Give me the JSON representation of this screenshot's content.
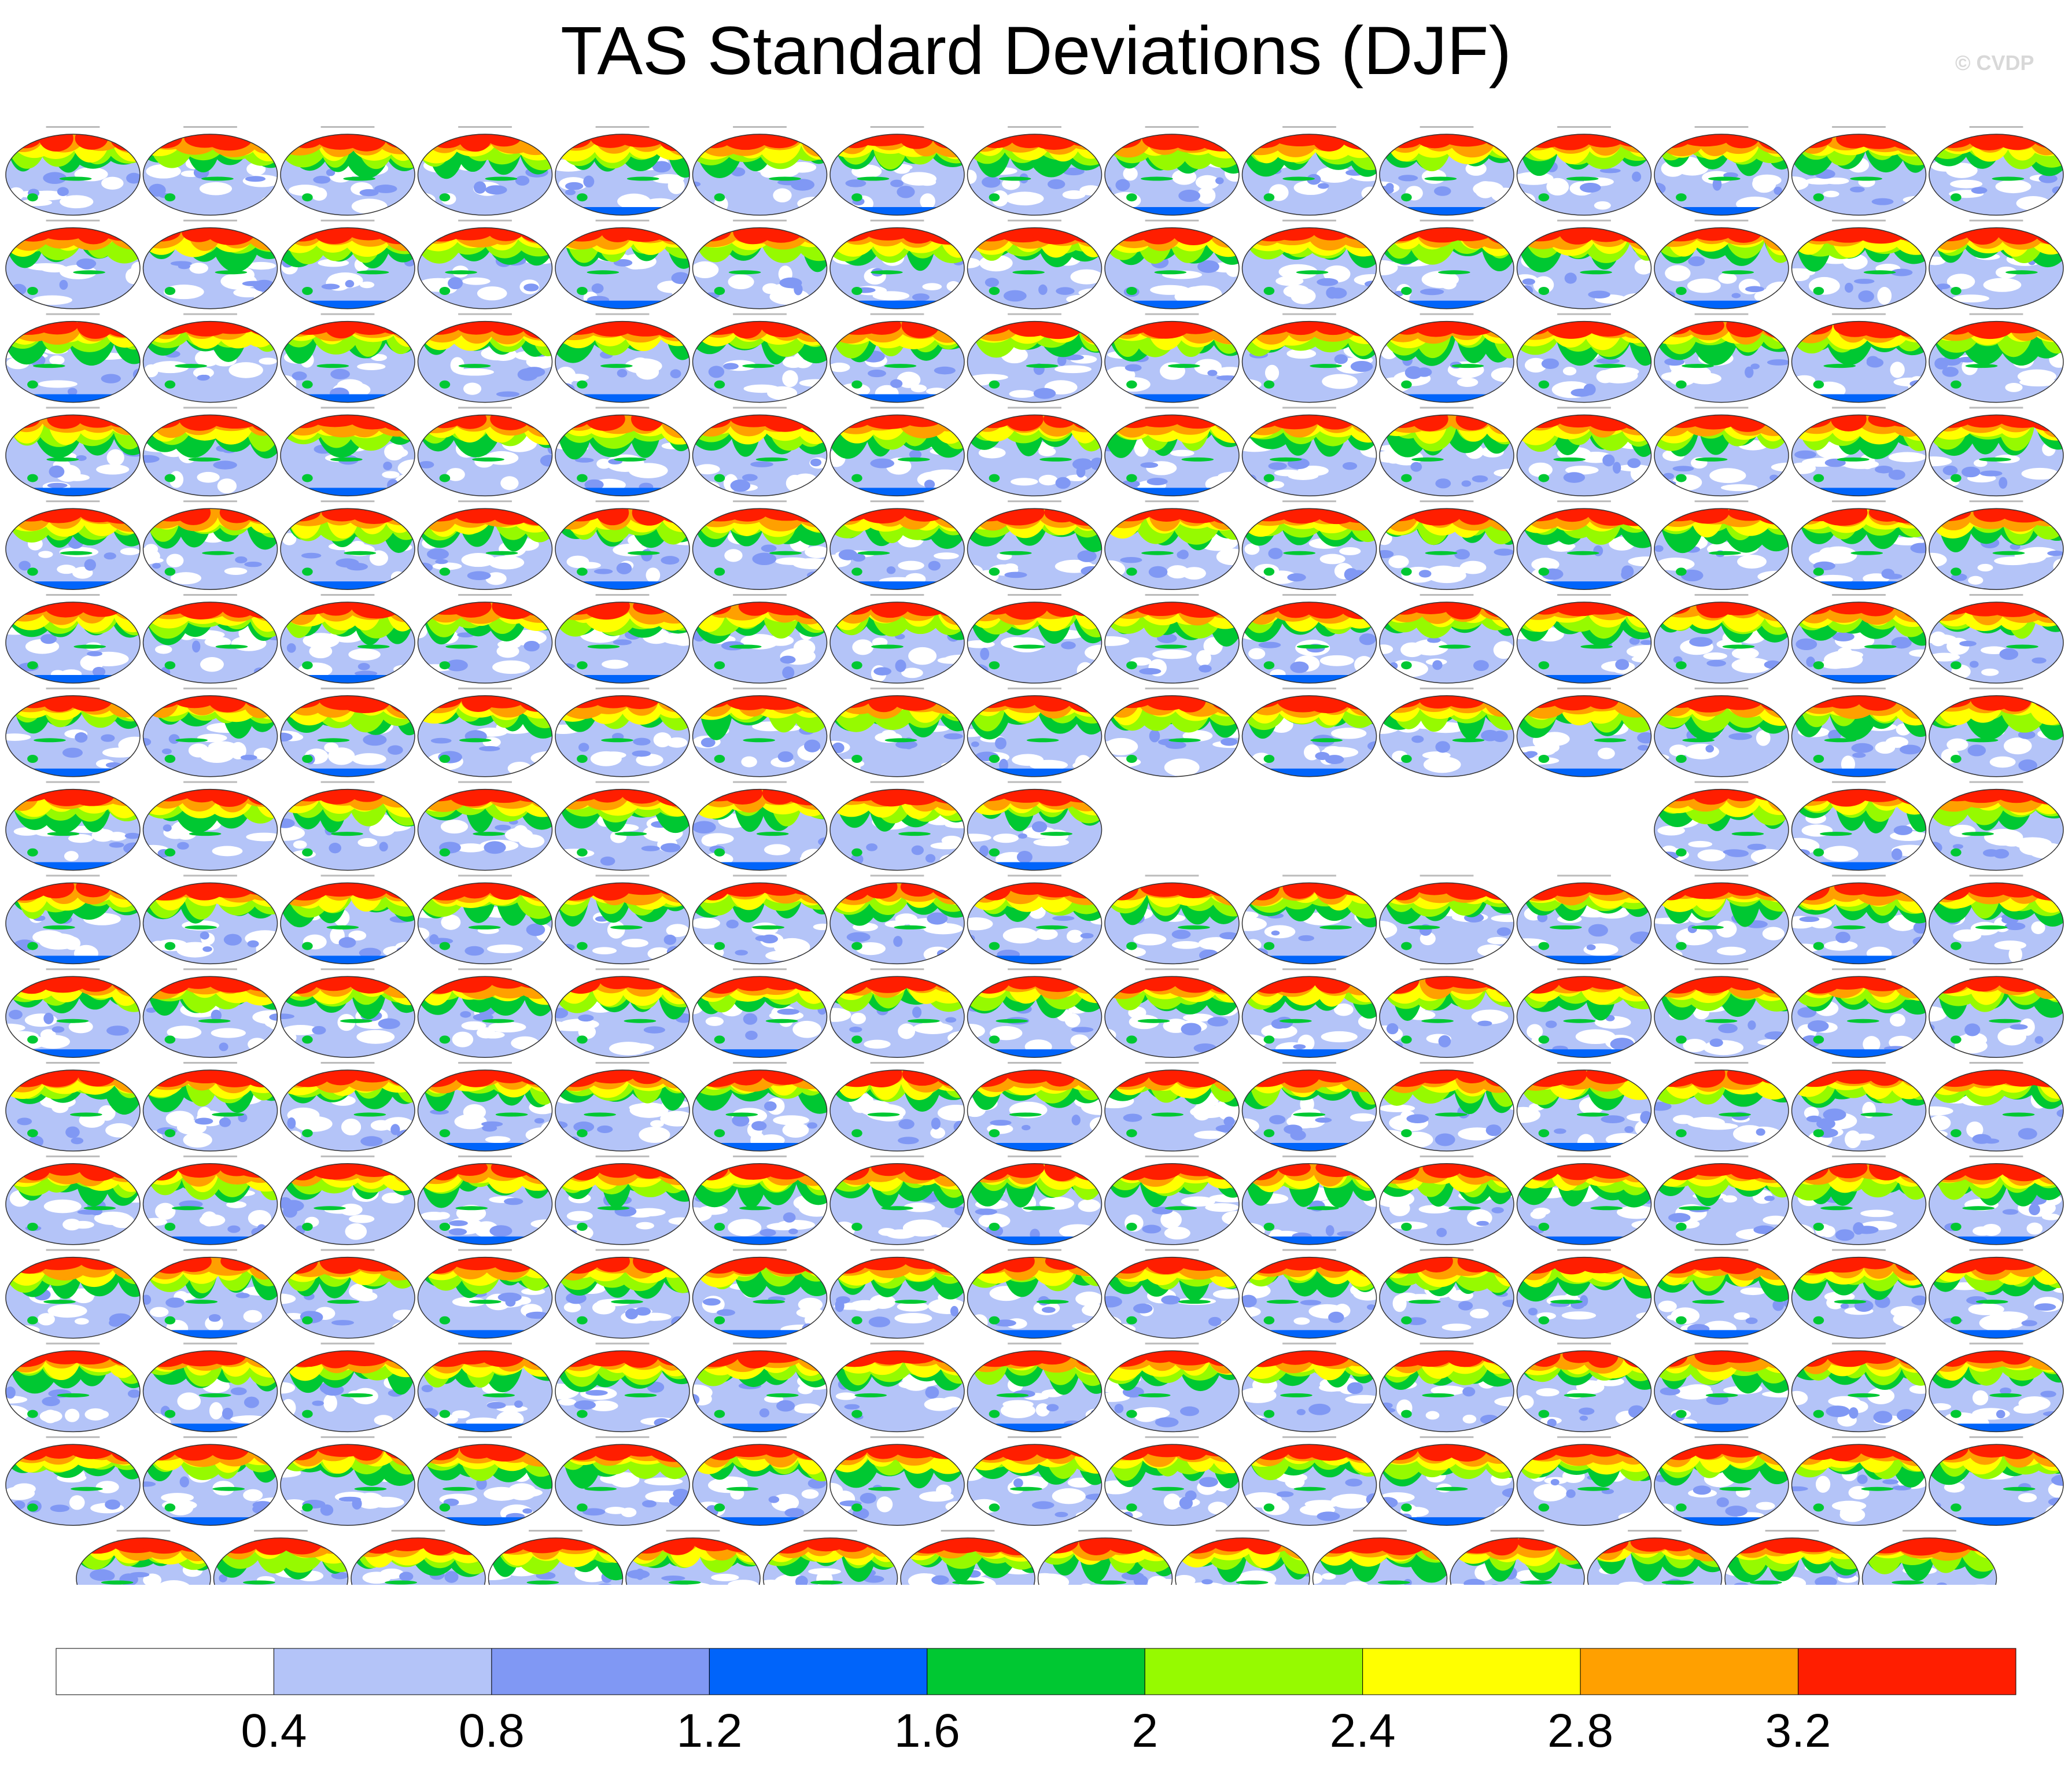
{
  "chart_data": {
    "type": "heatmap",
    "title": "TAS Standard Deviations (DJF)",
    "watermark": "© CVDP",
    "colorbar": {
      "tick_labels": [
        "0.4",
        "0.8",
        "1.2",
        "1.6",
        "2",
        "2.4",
        "2.8",
        "3.2"
      ],
      "levels": [
        0.4,
        0.8,
        1.2,
        1.6,
        2.0,
        2.4,
        2.8,
        3.2
      ],
      "colors": [
        "#ffffff",
        "#b4c4f8",
        "#8098f4",
        "#0064fa",
        "#00c832",
        "#96fa00",
        "#ffff00",
        "#ffa000",
        "#ff1e00"
      ]
    },
    "panel_grid": {
      "row_counts": [
        15,
        15,
        15,
        15,
        15,
        15,
        15,
        11,
        15,
        15,
        15,
        15,
        15,
        15,
        15,
        14
      ],
      "row8_filled_columns": [
        0,
        1,
        2,
        3,
        4,
        5,
        6,
        7,
        12,
        13,
        14
      ]
    }
  }
}
